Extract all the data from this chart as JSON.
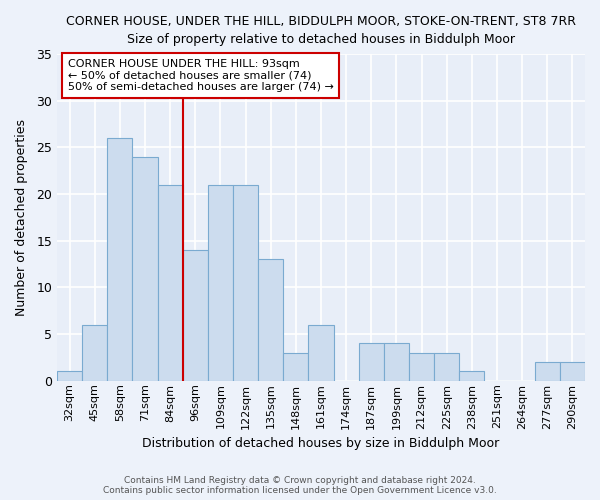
{
  "title_line1": "CORNER HOUSE, UNDER THE HILL, BIDDULPH MOOR, STOKE-ON-TRENT, ST8 7RR",
  "title_line2": "Size of property relative to detached houses in Biddulph Moor",
  "xlabel": "Distribution of detached houses by size in Biddulph Moor",
  "ylabel": "Number of detached properties",
  "categories": [
    "32sqm",
    "45sqm",
    "58sqm",
    "71sqm",
    "84sqm",
    "96sqm",
    "109sqm",
    "122sqm",
    "135sqm",
    "148sqm",
    "161sqm",
    "174sqm",
    "187sqm",
    "199sqm",
    "212sqm",
    "225sqm",
    "238sqm",
    "251sqm",
    "264sqm",
    "277sqm",
    "290sqm"
  ],
  "values": [
    1,
    6,
    26,
    24,
    21,
    14,
    21,
    21,
    13,
    3,
    6,
    0,
    4,
    4,
    3,
    3,
    1,
    0,
    0,
    2,
    2
  ],
  "bar_color": "#ccdcee",
  "bar_edge_color": "#7aaad0",
  "vline_color": "#cc0000",
  "vline_position": 5,
  "annotation_text": "CORNER HOUSE UNDER THE HILL: 93sqm\n← 50% of detached houses are smaller (74)\n50% of semi-detached houses are larger (74) →",
  "annotation_box_color": "#cc0000",
  "ylim": [
    0,
    35
  ],
  "yticks": [
    0,
    5,
    10,
    15,
    20,
    25,
    30,
    35
  ],
  "background_color": "#e8eef8",
  "grid_color": "#ffffff",
  "footer_line1": "Contains HM Land Registry data © Crown copyright and database right 2024.",
  "footer_line2": "Contains public sector information licensed under the Open Government Licence v3.0."
}
